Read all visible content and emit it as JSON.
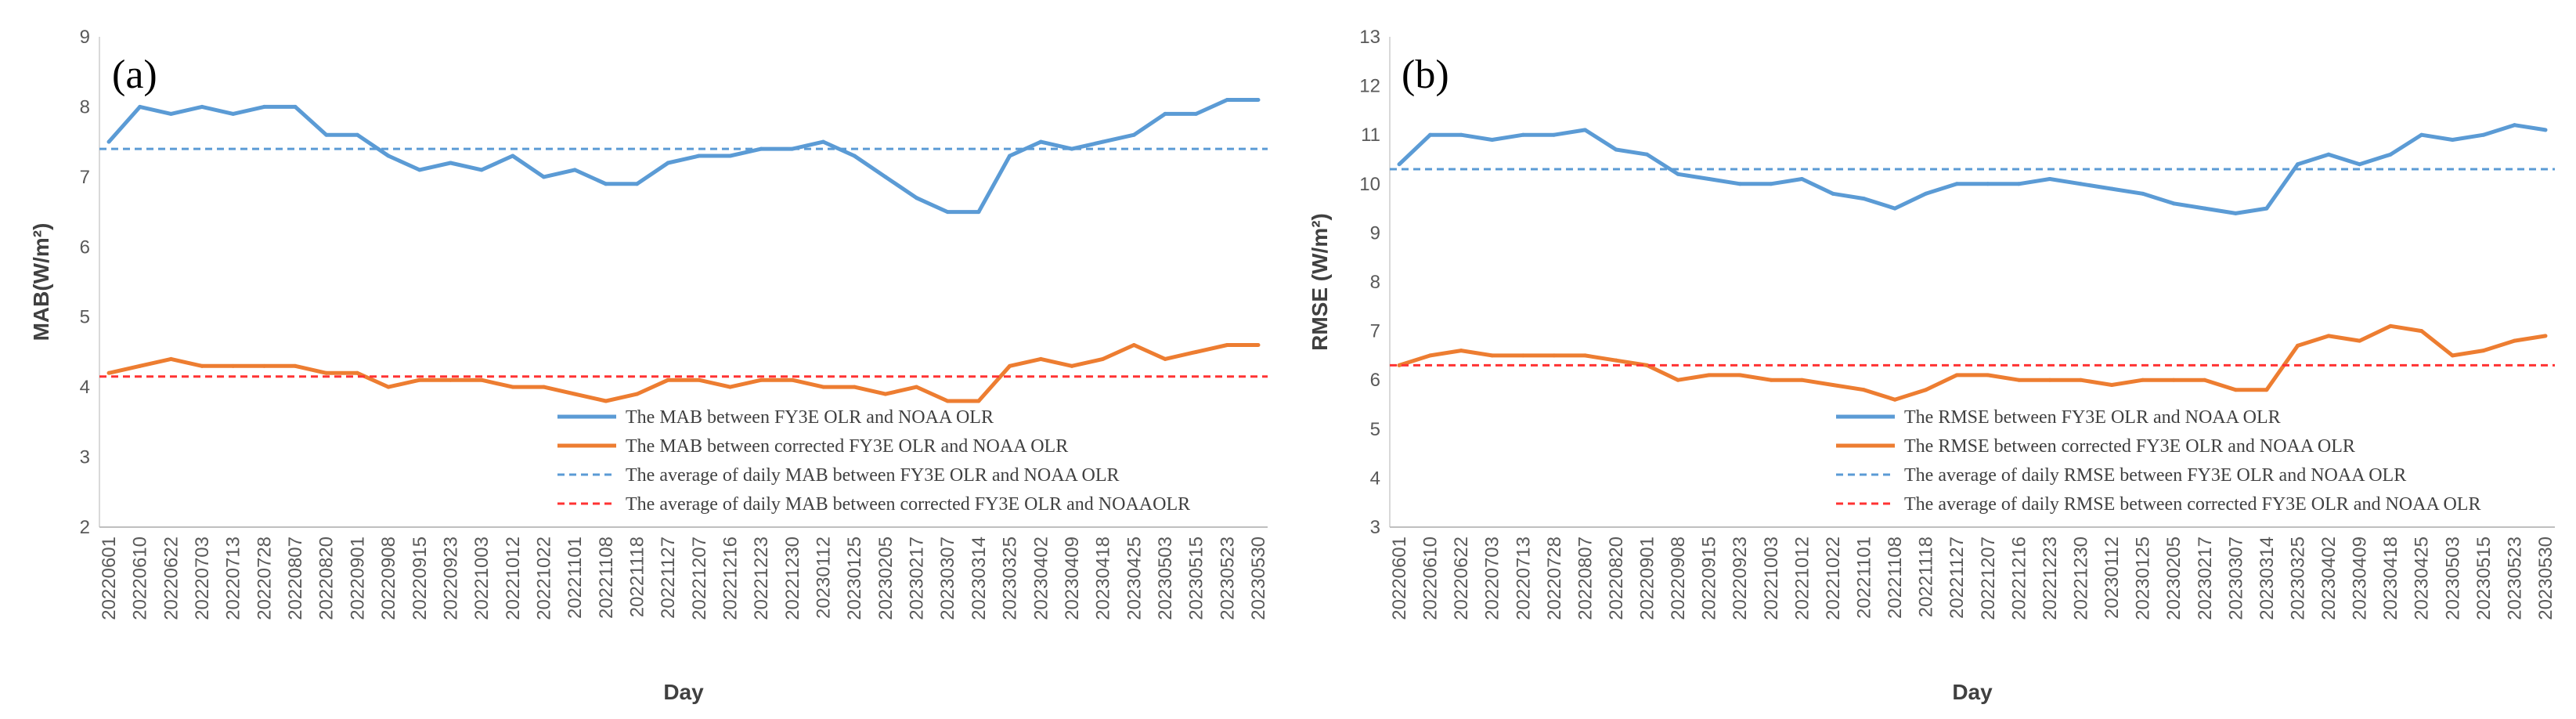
{
  "chart_data": [
    {
      "type": "line",
      "panel_label": "(a)",
      "xlabel": "Day",
      "ylabel": "MAB(W/m²)",
      "ylim": [
        2,
        9
      ],
      "yticks": [
        2,
        3,
        4,
        5,
        6,
        7,
        8,
        9
      ],
      "xtick_labels": [
        "20220601",
        "20220610",
        "20220622",
        "20220703",
        "20220713",
        "20220728",
        "20220807",
        "20220820",
        "20220901",
        "20220908",
        "20220915",
        "20220923",
        "20221003",
        "20221012",
        "20221022",
        "20221101",
        "20221108",
        "20221118",
        "20221127",
        "20221207",
        "20221216",
        "20221223",
        "20221230",
        "20230112",
        "20230125",
        "20230205",
        "20230217",
        "20230307",
        "20230314",
        "20230325",
        "20230402",
        "20230409",
        "20230418",
        "20230425",
        "20230503",
        "20230515",
        "20230523",
        "20230530"
      ],
      "legend_position": "bottom-right",
      "series": [
        {
          "name": "The MAB between FY3E OLR and NOAA OLR",
          "style": "solid",
          "color": "#5b9bd5",
          "values": [
            7.5,
            8.0,
            7.9,
            8.0,
            7.9,
            8.0,
            8.0,
            7.6,
            7.6,
            7.3,
            7.1,
            7.2,
            7.1,
            7.3,
            7.0,
            7.1,
            6.9,
            6.9,
            7.2,
            7.3,
            7.3,
            7.4,
            7.4,
            7.5,
            7.3,
            7.0,
            6.7,
            6.5,
            6.5,
            7.3,
            7.5,
            7.4,
            7.5,
            7.6,
            7.9,
            7.9,
            8.1,
            8.1
          ]
        },
        {
          "name": "The MAB between corrected FY3E OLR and NOAA OLR",
          "style": "solid",
          "color": "#ed7d31",
          "values": [
            4.2,
            4.3,
            4.4,
            4.3,
            4.3,
            4.3,
            4.3,
            4.2,
            4.2,
            4.0,
            4.1,
            4.1,
            4.1,
            4.0,
            4.0,
            3.9,
            3.8,
            3.9,
            4.1,
            4.1,
            4.0,
            4.1,
            4.1,
            4.0,
            4.0,
            3.9,
            4.0,
            3.8,
            3.8,
            4.3,
            4.4,
            4.3,
            4.4,
            4.6,
            4.4,
            4.5,
            4.6,
            4.6
          ]
        },
        {
          "name": "The average of  daily MAB between FY3E OLR and NOAA OLR",
          "style": "dashed",
          "color": "#5b9bd5",
          "value": 7.4
        },
        {
          "name": "The average of daily MAB between corrected FY3E OLR and NOAAOLR",
          "style": "dashed",
          "color": "#ff3333",
          "value": 4.15
        }
      ]
    },
    {
      "type": "line",
      "panel_label": "(b)",
      "xlabel": "Day",
      "ylabel": "RMSE (W/m²)",
      "ylim": [
        3,
        13
      ],
      "yticks": [
        3,
        4,
        5,
        6,
        7,
        8,
        9,
        10,
        11,
        12,
        13
      ],
      "xtick_labels": [
        "20220601",
        "20220610",
        "20220622",
        "20220703",
        "20220713",
        "20220728",
        "20220807",
        "20220820",
        "20220901",
        "20220908",
        "20220915",
        "20220923",
        "20221003",
        "20221012",
        "20221022",
        "20221101",
        "20221108",
        "20221118",
        "20221127",
        "20221207",
        "20221216",
        "20221223",
        "20221230",
        "20230112",
        "20230125",
        "20230205",
        "20230217",
        "20230307",
        "20230314",
        "20230325",
        "20230402",
        "20230409",
        "20230418",
        "20230425",
        "20230503",
        "20230515",
        "20230523",
        "20230530"
      ],
      "legend_position": "bottom-right",
      "series": [
        {
          "name": "The RMSE between FY3E OLR and NOAA OLR",
          "style": "solid",
          "color": "#5b9bd5",
          "values": [
            10.4,
            11.0,
            11.0,
            10.9,
            11.0,
            11.0,
            11.1,
            10.7,
            10.6,
            10.2,
            10.1,
            10.0,
            10.0,
            10.1,
            9.8,
            9.7,
            9.5,
            9.8,
            10.0,
            10.0,
            10.0,
            10.1,
            10.0,
            9.9,
            9.8,
            9.6,
            9.5,
            9.4,
            9.5,
            10.4,
            10.6,
            10.4,
            10.6,
            11.0,
            10.9,
            11.0,
            11.2,
            11.1
          ]
        },
        {
          "name": "The RMSE between corrected FY3E OLR and NOAA OLR",
          "style": "solid",
          "color": "#ed7d31",
          "values": [
            6.3,
            6.5,
            6.6,
            6.5,
            6.5,
            6.5,
            6.5,
            6.4,
            6.3,
            6.0,
            6.1,
            6.1,
            6.0,
            6.0,
            5.9,
            5.8,
            5.6,
            5.8,
            6.1,
            6.1,
            6.0,
            6.0,
            6.0,
            5.9,
            6.0,
            6.0,
            6.0,
            5.8,
            5.8,
            6.7,
            6.9,
            6.8,
            7.1,
            7.0,
            6.5,
            6.6,
            6.8,
            6.9
          ]
        },
        {
          "name": "The average of daily RMSE between FY3E OLR and NOAA OLR",
          "style": "dashed",
          "color": "#5b9bd5",
          "value": 10.3
        },
        {
          "name": "The average of daily RMSE between corrected FY3E OLR and NOAA OLR",
          "style": "dashed",
          "color": "#ff3333",
          "value": 6.3
        }
      ]
    }
  ]
}
